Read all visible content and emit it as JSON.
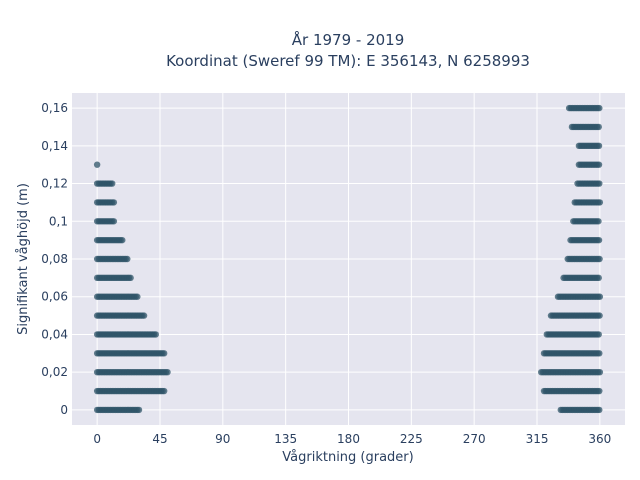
{
  "chart_data": {
    "type": "scatter",
    "title": "År 1979 - 2019",
    "subtitle": "Koordinat (Sweref 99 TM): E 356143, N 6258993",
    "xlabel": "Vågriktning (grader)",
    "ylabel": "Signifikant våghöjd (m)",
    "xlim": [
      -18,
      378
    ],
    "ylim": [
      -0.008,
      0.168
    ],
    "x_ticks": [
      0,
      45,
      90,
      135,
      180,
      225,
      270,
      315,
      360
    ],
    "x_tick_labels": [
      "0",
      "45",
      "90",
      "135",
      "180",
      "225",
      "270",
      "315",
      "360"
    ],
    "y_ticks": [
      0,
      0.02,
      0.04,
      0.06,
      0.08,
      0.1,
      0.12,
      0.14,
      0.16
    ],
    "y_tick_labels": [
      "0",
      "0,02",
      "0,04",
      "0,06",
      "0,08",
      "0,1",
      "0,12",
      "0,14",
      "0,16"
    ],
    "grid": true,
    "marker_color": "#2f5468",
    "background_color": "#e5e5ef",
    "bands": [
      {
        "y": 0.0,
        "ranges": [
          [
            0,
            30
          ],
          [
            332,
            360
          ]
        ]
      },
      {
        "y": 0.01,
        "ranges": [
          [
            0,
            49
          ],
          [
            320,
            360
          ]
        ]
      },
      {
        "y": 0.02,
        "ranges": [
          [
            0,
            51
          ],
          [
            318,
            360
          ]
        ]
      },
      {
        "y": 0.03,
        "ranges": [
          [
            0,
            48
          ],
          [
            320,
            360
          ]
        ]
      },
      {
        "y": 0.04,
        "ranges": [
          [
            0,
            42
          ],
          [
            322,
            360
          ]
        ]
      },
      {
        "y": 0.05,
        "ranges": [
          [
            0,
            34
          ],
          [
            325,
            360
          ]
        ]
      },
      {
        "y": 0.06,
        "ranges": [
          [
            0,
            29
          ],
          [
            330,
            360
          ]
        ]
      },
      {
        "y": 0.07,
        "ranges": [
          [
            0,
            24
          ],
          [
            334,
            360
          ]
        ]
      },
      {
        "y": 0.08,
        "ranges": [
          [
            0,
            22
          ],
          [
            337,
            360
          ]
        ]
      },
      {
        "y": 0.09,
        "ranges": [
          [
            0,
            18
          ],
          [
            339,
            360
          ]
        ]
      },
      {
        "y": 0.1,
        "ranges": [
          [
            0,
            13
          ],
          [
            341,
            360
          ]
        ]
      },
      {
        "y": 0.11,
        "ranges": [
          [
            0,
            12
          ],
          [
            342,
            360
          ]
        ]
      },
      {
        "y": 0.12,
        "ranges": [
          [
            0,
            11
          ],
          [
            344,
            360
          ]
        ]
      },
      {
        "y": 0.13,
        "ranges": [
          [
            0,
            0
          ],
          [
            345,
            360
          ]
        ]
      },
      {
        "y": 0.14,
        "ranges": [
          [
            345,
            360
          ]
        ]
      },
      {
        "y": 0.15,
        "ranges": [
          [
            340,
            360
          ]
        ]
      },
      {
        "y": 0.16,
        "ranges": [
          [
            338,
            360
          ]
        ]
      }
    ]
  }
}
